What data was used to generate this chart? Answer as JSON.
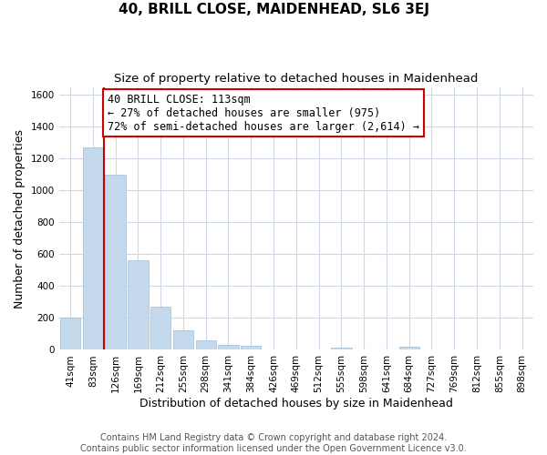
{
  "title": "40, BRILL CLOSE, MAIDENHEAD, SL6 3EJ",
  "subtitle": "Size of property relative to detached houses in Maidenhead",
  "xlabel": "Distribution of detached houses by size in Maidenhead",
  "ylabel": "Number of detached properties",
  "bar_labels": [
    "41sqm",
    "83sqm",
    "126sqm",
    "169sqm",
    "212sqm",
    "255sqm",
    "298sqm",
    "341sqm",
    "384sqm",
    "426sqm",
    "469sqm",
    "512sqm",
    "555sqm",
    "598sqm",
    "641sqm",
    "684sqm",
    "727sqm",
    "769sqm",
    "812sqm",
    "855sqm",
    "898sqm"
  ],
  "bar_values": [
    200,
    1270,
    1100,
    560,
    270,
    125,
    60,
    30,
    25,
    0,
    0,
    0,
    15,
    0,
    0,
    20,
    0,
    0,
    0,
    0,
    0
  ],
  "bar_color": "#c5d9ed",
  "bar_edge_color": "#a8c4e0",
  "ylim": [
    0,
    1650
  ],
  "yticks": [
    0,
    200,
    400,
    600,
    800,
    1000,
    1200,
    1400,
    1600
  ],
  "property_line_color": "#cc0000",
  "annotation_line1": "40 BRILL CLOSE: 113sqm",
  "annotation_line2": "← 27% of detached houses are smaller (975)",
  "annotation_line3": "72% of semi-detached houses are larger (2,614) →",
  "footer_line1": "Contains HM Land Registry data © Crown copyright and database right 2024.",
  "footer_line2": "Contains public sector information licensed under the Open Government Licence v3.0.",
  "bg_color": "#ffffff",
  "grid_color": "#d0d8e8",
  "title_fontsize": 11,
  "subtitle_fontsize": 9.5,
  "axis_label_fontsize": 9,
  "tick_fontsize": 7.5,
  "annotation_fontsize": 8.5,
  "footer_fontsize": 7
}
